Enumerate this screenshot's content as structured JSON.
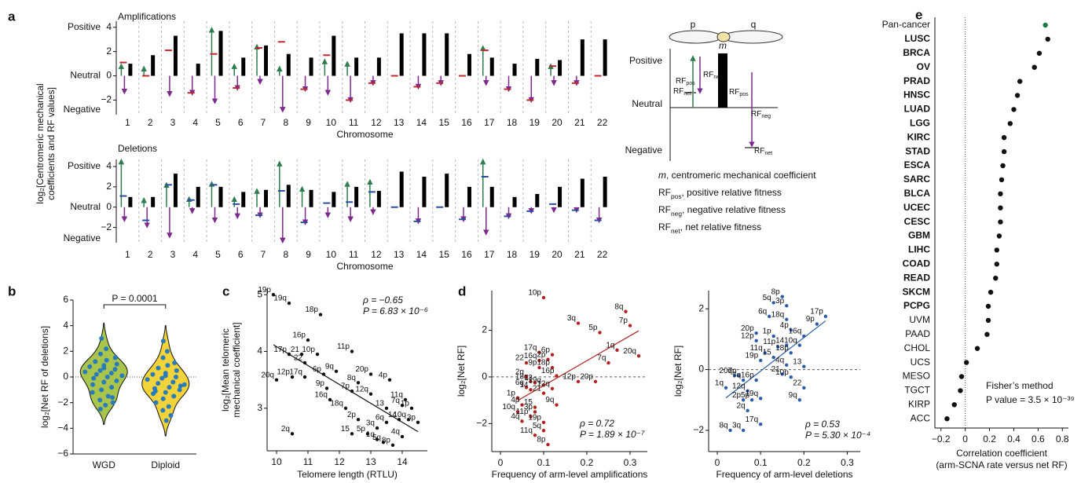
{
  "chart_data": [
    {
      "type": "arm-bar",
      "panel": "a",
      "title": "Amplifications",
      "ylabel": [
        "log₂[Centromeric mechanical",
        "coefficients and RF values]"
      ],
      "xlabel": "Chromosome",
      "level_labels": [
        "Positive",
        "Neutral",
        "Negative"
      ],
      "categories": [
        "1",
        "2",
        "3",
        "4",
        "5",
        "6",
        "7",
        "8",
        "9",
        "10",
        "11",
        "12",
        "13",
        "14",
        "15",
        "16",
        "17",
        "18",
        "19",
        "20",
        "21",
        "22"
      ],
      "ylim": [
        -3.2,
        4.5
      ],
      "yticks": [
        {
          "value": -2,
          "label": "−2"
        },
        0,
        2,
        4
      ],
      "m": [
        1.0,
        1.7,
        3.3,
        1.0,
        3.7,
        1.5,
        2.5,
        1.8,
        1.5,
        3.3,
        1.5,
        1.5,
        3.5,
        3.5,
        3.5,
        1.8,
        1.5,
        1.0,
        1.4,
        1.3,
        3.0,
        3.0
      ],
      "rf_pos": [
        0.8,
        0.6,
        0,
        0,
        3.8,
        0.8,
        2.4,
        0.6,
        0,
        1.2,
        1.0,
        0,
        0,
        0,
        0,
        0,
        2.3,
        0,
        0,
        0.8,
        0,
        0
      ],
      "rf_neg": [
        -1.3,
        0,
        -1.5,
        -1.4,
        -2.1,
        -1.0,
        -0.5,
        -2.8,
        -1.1,
        -1.4,
        -2.0,
        -0.6,
        0,
        -0.9,
        -0.6,
        0,
        -0.6,
        -1.1,
        -2.0,
        -0.6,
        -0.6,
        0
      ],
      "rf_net": [
        1.1,
        0,
        2.1,
        -1.4,
        1.8,
        -1.0,
        2.3,
        2.8,
        -1.1,
        1.7,
        -2.0,
        -0.6,
        0,
        -0.9,
        -0.6,
        0,
        2.1,
        -1.1,
        -2.0,
        0.8,
        -0.6,
        0
      ],
      "colors": {
        "m": "#000000",
        "rf_pos": "#2e7d4f",
        "rf_neg": "#7b2a8c",
        "rf_net": "#c0282d"
      }
    },
    {
      "type": "arm-bar",
      "title": "Deletions",
      "xlabel": "Chromosome",
      "level_labels": [
        "Positive",
        "Neutral",
        "Negative"
      ],
      "categories": [
        "1",
        "2",
        "3",
        "4",
        "5",
        "6",
        "7",
        "8",
        "9",
        "10",
        "11",
        "12",
        "13",
        "14",
        "15",
        "16",
        "17",
        "18",
        "19",
        "20",
        "21",
        "22"
      ],
      "ylim": [
        -3.5,
        4.7
      ],
      "yticks": [
        {
          "value": -2,
          "label": "−2"
        },
        0,
        2,
        4
      ],
      "m": [
        1.0,
        1.0,
        3.3,
        2.0,
        2.0,
        1.5,
        1.7,
        2.2,
        1.7,
        1.5,
        2.0,
        1.6,
        3.5,
        3.0,
        3.3,
        2.0,
        2.0,
        1.0,
        1.3,
        2.0,
        2.8,
        3.0
      ],
      "rf_pos": [
        4.5,
        0.7,
        2.2,
        0.8,
        2.3,
        0.8,
        1.6,
        4.3,
        1.8,
        0,
        2.3,
        2.5,
        0,
        0,
        0,
        0,
        4.5,
        0,
        0,
        0,
        0,
        0
      ],
      "rf_neg": [
        -1.2,
        -1.8,
        -2.8,
        -0.4,
        -1.3,
        -0.9,
        -0.8,
        -3.3,
        -1.5,
        -0.8,
        -1.2,
        -0.5,
        0,
        -1.4,
        0,
        -1.2,
        -2.5,
        -0.9,
        -0.4,
        -0.3,
        -0.3,
        -1.3
      ],
      "rf_net": [
        1.1,
        -1.3,
        2.2,
        0.7,
        2.2,
        0.3,
        -0.8,
        1.6,
        -1.5,
        0.4,
        0.5,
        1.5,
        0,
        -1.4,
        0,
        -1.2,
        3.0,
        -0.9,
        -0.4,
        0.3,
        -0.3,
        -1.3
      ],
      "colors": {
        "m": "#000000",
        "rf_pos": "#2e7d4f",
        "rf_neg": "#7b2a8c",
        "rf_net": "#2b4fa0"
      }
    },
    {
      "type": "violin",
      "panel": "b",
      "ylabel": "log₂[Net RF of deletions]",
      "categories": [
        "WGD",
        "Diploid"
      ],
      "annotation": "P = 0.0001",
      "ylim": [
        -6,
        6
      ],
      "yticks": [
        {
          "value": -6,
          "label": "−6"
        },
        {
          "value": -4,
          "label": "−4"
        },
        {
          "value": -2,
          "label": "−2"
        },
        0,
        2,
        4,
        6
      ],
      "point_color": "#2b7bba",
      "groups": [
        {
          "color": "#a9c54b",
          "values": [
            3.0,
            2.2,
            1.8,
            1.5,
            1.3,
            1.2,
            1.0,
            0.9,
            0.8,
            0.6,
            0.5,
            0.4,
            0.3,
            0.2,
            0.1,
            0.0,
            -0.1,
            -0.3,
            -0.4,
            -0.6,
            -0.8,
            -1.0,
            -1.2,
            -1.5,
            -1.8,
            -2.0,
            -2.2,
            -2.5,
            -1.6,
            0.7
          ]
        },
        {
          "color": "#f2d43a",
          "values": [
            2.8,
            2.0,
            1.5,
            1.1,
            0.9,
            0.7,
            0.5,
            0.3,
            0.2,
            0.0,
            -0.1,
            -0.2,
            -0.4,
            -0.5,
            -0.6,
            -0.8,
            -0.9,
            -1.0,
            -1.2,
            -1.3,
            -1.5,
            -1.7,
            -2.0,
            -2.3,
            -2.6,
            -3.0,
            -3.4,
            -1.1,
            -0.7,
            0.1
          ]
        }
      ]
    },
    {
      "type": "scatter",
      "panel": "c",
      "xlabel": "Telomere length (RTLU)",
      "ylabel": [
        "log₂[Mean telomeric",
        "mechanical coefficient]"
      ],
      "annotations": [
        "ρ = −0.65",
        "P = 6.83 × 10⁻⁶"
      ],
      "color": "#111111",
      "xlim": [
        9.7,
        14.8
      ],
      "xticks": [
        10,
        11,
        12,
        13,
        14
      ],
      "ylim": [
        2.25,
        5.1
      ],
      "yticks": [
        3,
        4,
        5
      ],
      "labels": [
        "19p",
        "19q",
        "18p",
        "16p",
        "17p",
        "21",
        "10p",
        "11p",
        "22",
        "12p",
        "17q",
        "6p",
        "9q",
        "20p",
        "20q",
        "9p",
        "8q",
        "4p",
        "16q",
        "7p",
        "12q",
        "18q",
        "11q",
        "2p",
        "13",
        "7q",
        "1p",
        "10q",
        "3p",
        "6q",
        "3q",
        "15",
        "5p",
        "1q",
        "5q",
        "4q",
        "8p",
        "14",
        "2q"
      ],
      "x": [
        9.9,
        10.4,
        11.4,
        11.0,
        10.4,
        10.8,
        11.3,
        12.4,
        10.9,
        10.5,
        10.9,
        11.5,
        11.9,
        13.0,
        10.0,
        11.6,
        12.6,
        13.6,
        11.7,
        12.4,
        13.0,
        12.2,
        14.1,
        12.6,
        13.5,
        14.0,
        14.3,
        14.2,
        14.5,
        13.5,
        13.2,
        12.4,
        12.9,
        13.2,
        13.4,
        14.0,
        13.7,
        13.9,
        10.5
      ],
      "y": [
        5.0,
        4.85,
        4.65,
        4.2,
        3.95,
        3.95,
        3.95,
        4.0,
        3.8,
        3.55,
        3.55,
        3.6,
        3.65,
        3.6,
        3.5,
        3.35,
        3.45,
        3.5,
        3.15,
        3.3,
        3.25,
        3.0,
        3.15,
        2.8,
        3.0,
        3.05,
        3.0,
        2.8,
        2.75,
        2.75,
        2.65,
        2.55,
        2.55,
        2.45,
        2.4,
        2.5,
        2.35,
        2.8,
        2.55
      ]
    },
    {
      "type": "scatter",
      "panel": "d",
      "xlabel": "Frequency of arm-level amplifications",
      "ylabel": [
        "log₂[Net RF]"
      ],
      "annotations": [
        "ρ = 0.72",
        "P = 1.89 × 10⁻⁷"
      ],
      "color": "#b22222",
      "zero_line": true,
      "xlim": [
        -0.02,
        0.34
      ],
      "xticks": [
        0,
        0.1,
        0.2,
        0.3
      ],
      "ylim": [
        -3.2,
        3.7
      ],
      "yticks": [
        {
          "value": -2,
          "label": "−2"
        },
        0,
        2
      ],
      "labels": [
        "10p",
        "8q",
        "7p",
        "3q",
        "5p",
        "1q",
        "20q",
        "7q",
        "17q",
        "6p",
        "2p",
        "16q",
        "22",
        "18p",
        "9p",
        "16p",
        "12p",
        "20p",
        "18q",
        "2q",
        "13",
        "19q",
        "6q",
        "12q",
        "14",
        "21",
        "1p",
        "4p",
        "9q",
        "15",
        "3p",
        "10q",
        "11p",
        "4q",
        "19p",
        "5q",
        "11q",
        "8p"
      ],
      "x": [
        0.1,
        0.29,
        0.3,
        0.18,
        0.23,
        0.27,
        0.32,
        0.25,
        0.09,
        0.12,
        0.11,
        0.09,
        0.06,
        0.12,
        0.09,
        0.13,
        0.18,
        0.22,
        0.07,
        0.06,
        0.08,
        0.1,
        0.06,
        0.12,
        0.07,
        0.1,
        0.04,
        0.05,
        0.13,
        0.08,
        0.08,
        0.04,
        0.07,
        0.05,
        0.1,
        0.1,
        0.08,
        0.11
      ],
      "y": [
        3.4,
        2.8,
        2.2,
        2.3,
        1.9,
        1.15,
        0.9,
        0.6,
        1.05,
        0.95,
        0.75,
        0.7,
        0.6,
        0.4,
        0.4,
        0.05,
        -0.2,
        -0.2,
        -0.2,
        0.0,
        -0.25,
        -0.35,
        -0.45,
        -0.5,
        -0.55,
        -0.7,
        -0.9,
        -1.2,
        -1.2,
        -1.3,
        -1.5,
        -1.5,
        -1.7,
        -1.9,
        -1.95,
        -2.3,
        -2.5,
        -2.9
      ]
    },
    {
      "type": "scatter",
      "xlabel": "Frequency of arm-level deletions",
      "ylabel": [
        "log₂[Net RF]"
      ],
      "annotations": [
        "ρ = 0.53",
        "P = 5.30 × 10⁻⁴"
      ],
      "color": "#2b5ca8",
      "zero_line": true,
      "xlim": [
        -0.02,
        0.33
      ],
      "xticks": [
        0,
        0.1,
        0.2,
        0.3
      ],
      "ylim": [
        -2.7,
        2.6
      ],
      "yticks": [
        {
          "value": -2,
          "label": "−2"
        },
        0,
        2
      ],
      "labels": [
        "8p",
        "5q",
        "3p",
        "6q",
        "18q",
        "9p",
        "17p",
        "4p",
        "20p",
        "1p",
        "16q",
        "12p",
        "11p",
        "14",
        "10q",
        "11q",
        "18p",
        "19p",
        "15",
        "13",
        "4q",
        "21",
        "10p",
        "20q",
        "7p",
        "7q",
        "16p",
        "1q",
        "12q",
        "2p",
        "5p",
        "19q",
        "22",
        "9q",
        "2q",
        "17q",
        "8q",
        "3q"
      ],
      "x": [
        0.15,
        0.13,
        0.16,
        0.12,
        0.16,
        0.23,
        0.25,
        0.17,
        0.09,
        0.13,
        0.2,
        0.09,
        0.14,
        0.16,
        0.19,
        0.11,
        0.17,
        0.1,
        0.13,
        0.2,
        0.16,
        0.15,
        0.17,
        0.04,
        0.05,
        0.06,
        0.09,
        0.02,
        0.07,
        0.06,
        0.08,
        0.1,
        0.2,
        0.19,
        0.07,
        0.1,
        0.03,
        0.06
      ],
      "y": [
        2.4,
        2.2,
        2.1,
        1.75,
        1.65,
        1.5,
        1.75,
        1.3,
        1.2,
        1.1,
        1.1,
        0.95,
        0.75,
        0.8,
        0.8,
        0.55,
        0.55,
        0.3,
        0.4,
        0.1,
        0.15,
        -0.15,
        -0.25,
        -0.2,
        -0.2,
        -0.35,
        -0.35,
        -0.6,
        -0.7,
        -1.0,
        -1.0,
        -0.95,
        -0.6,
        -1.0,
        -1.35,
        -1.8,
        -2.0,
        -2.0
      ]
    },
    {
      "type": "dot",
      "panel": "e",
      "xlabel": [
        "Correlation coefficient",
        "(arm-SCNA rate versus net RF)"
      ],
      "annotations": [
        "Fisher’s method",
        "P value = 3.5 × 10⁻³⁹"
      ],
      "xlim": [
        -0.25,
        0.85
      ],
      "xticks": [
        {
          "value": -0.2,
          "label": "−0.2"
        },
        0,
        0.2,
        0.4,
        0.6,
        0.8
      ],
      "categories": [
        "Pan-cancer",
        "LUSC",
        "BRCA",
        "OV",
        "PRAD",
        "HNSC",
        "LUAD",
        "LGG",
        "KIRC",
        "STAD",
        "ESCA",
        "SARC",
        "BLCA",
        "UCEC",
        "CESC",
        "GBM",
        "LIHC",
        "COAD",
        "READ",
        "SKCM",
        "PCPG",
        "UVM",
        "PAAD",
        "CHOL",
        "UCS",
        "MESO",
        "TGCT",
        "KIRP",
        "ACC"
      ],
      "values": [
        0.66,
        0.68,
        0.61,
        0.57,
        0.45,
        0.43,
        0.4,
        0.37,
        0.32,
        0.32,
        0.31,
        0.3,
        0.29,
        0.29,
        0.29,
        0.28,
        0.26,
        0.26,
        0.25,
        0.21,
        0.19,
        0.19,
        0.18,
        0.1,
        0.01,
        -0.03,
        -0.04,
        -0.09,
        -0.15
      ],
      "bold": [
        false,
        true,
        true,
        true,
        true,
        true,
        true,
        true,
        true,
        true,
        true,
        true,
        true,
        true,
        true,
        true,
        true,
        true,
        true,
        true,
        true,
        false,
        false,
        false,
        false,
        false,
        false,
        false,
        false
      ],
      "colors": [
        "#1a7a4c",
        "#111111",
        "#111111",
        "#111111",
        "#111111",
        "#111111",
        "#111111",
        "#111111",
        "#111111",
        "#111111",
        "#111111",
        "#111111",
        "#111111",
        "#111111",
        "#111111",
        "#111111",
        "#111111",
        "#111111",
        "#111111",
        "#111111",
        "#111111",
        "#111111",
        "#111111",
        "#111111",
        "#111111",
        "#111111",
        "#111111",
        "#111111",
        "#111111"
      ]
    }
  ],
  "schematic": {
    "arms": [
      "p",
      "q"
    ],
    "m": "m",
    "levels": [
      "Positive",
      "Neutral",
      "Negative"
    ],
    "rf_labels": [
      {
        "symbol": "RF",
        "sub": "pos"
      },
      {
        "symbol": "RF",
        "sub": "neg"
      },
      {
        "symbol": "RF",
        "sub": "net"
      },
      {
        "symbol": "RF",
        "sub": "pos"
      },
      {
        "symbol": "RF",
        "sub": "neg"
      },
      {
        "symbol": "RF",
        "sub": "net"
      }
    ],
    "legend": [
      {
        "symbol": "m",
        "text": ", centromeric mechanical coefficient"
      },
      {
        "symbol": "RF",
        "sub": "pos",
        "text": ", positive relative fitness"
      },
      {
        "symbol": "RF",
        "sub": "neg",
        "text": ", negative relative fitness"
      },
      {
        "symbol": "RF",
        "sub": "net",
        "text": ", net relative fitness"
      }
    ]
  }
}
